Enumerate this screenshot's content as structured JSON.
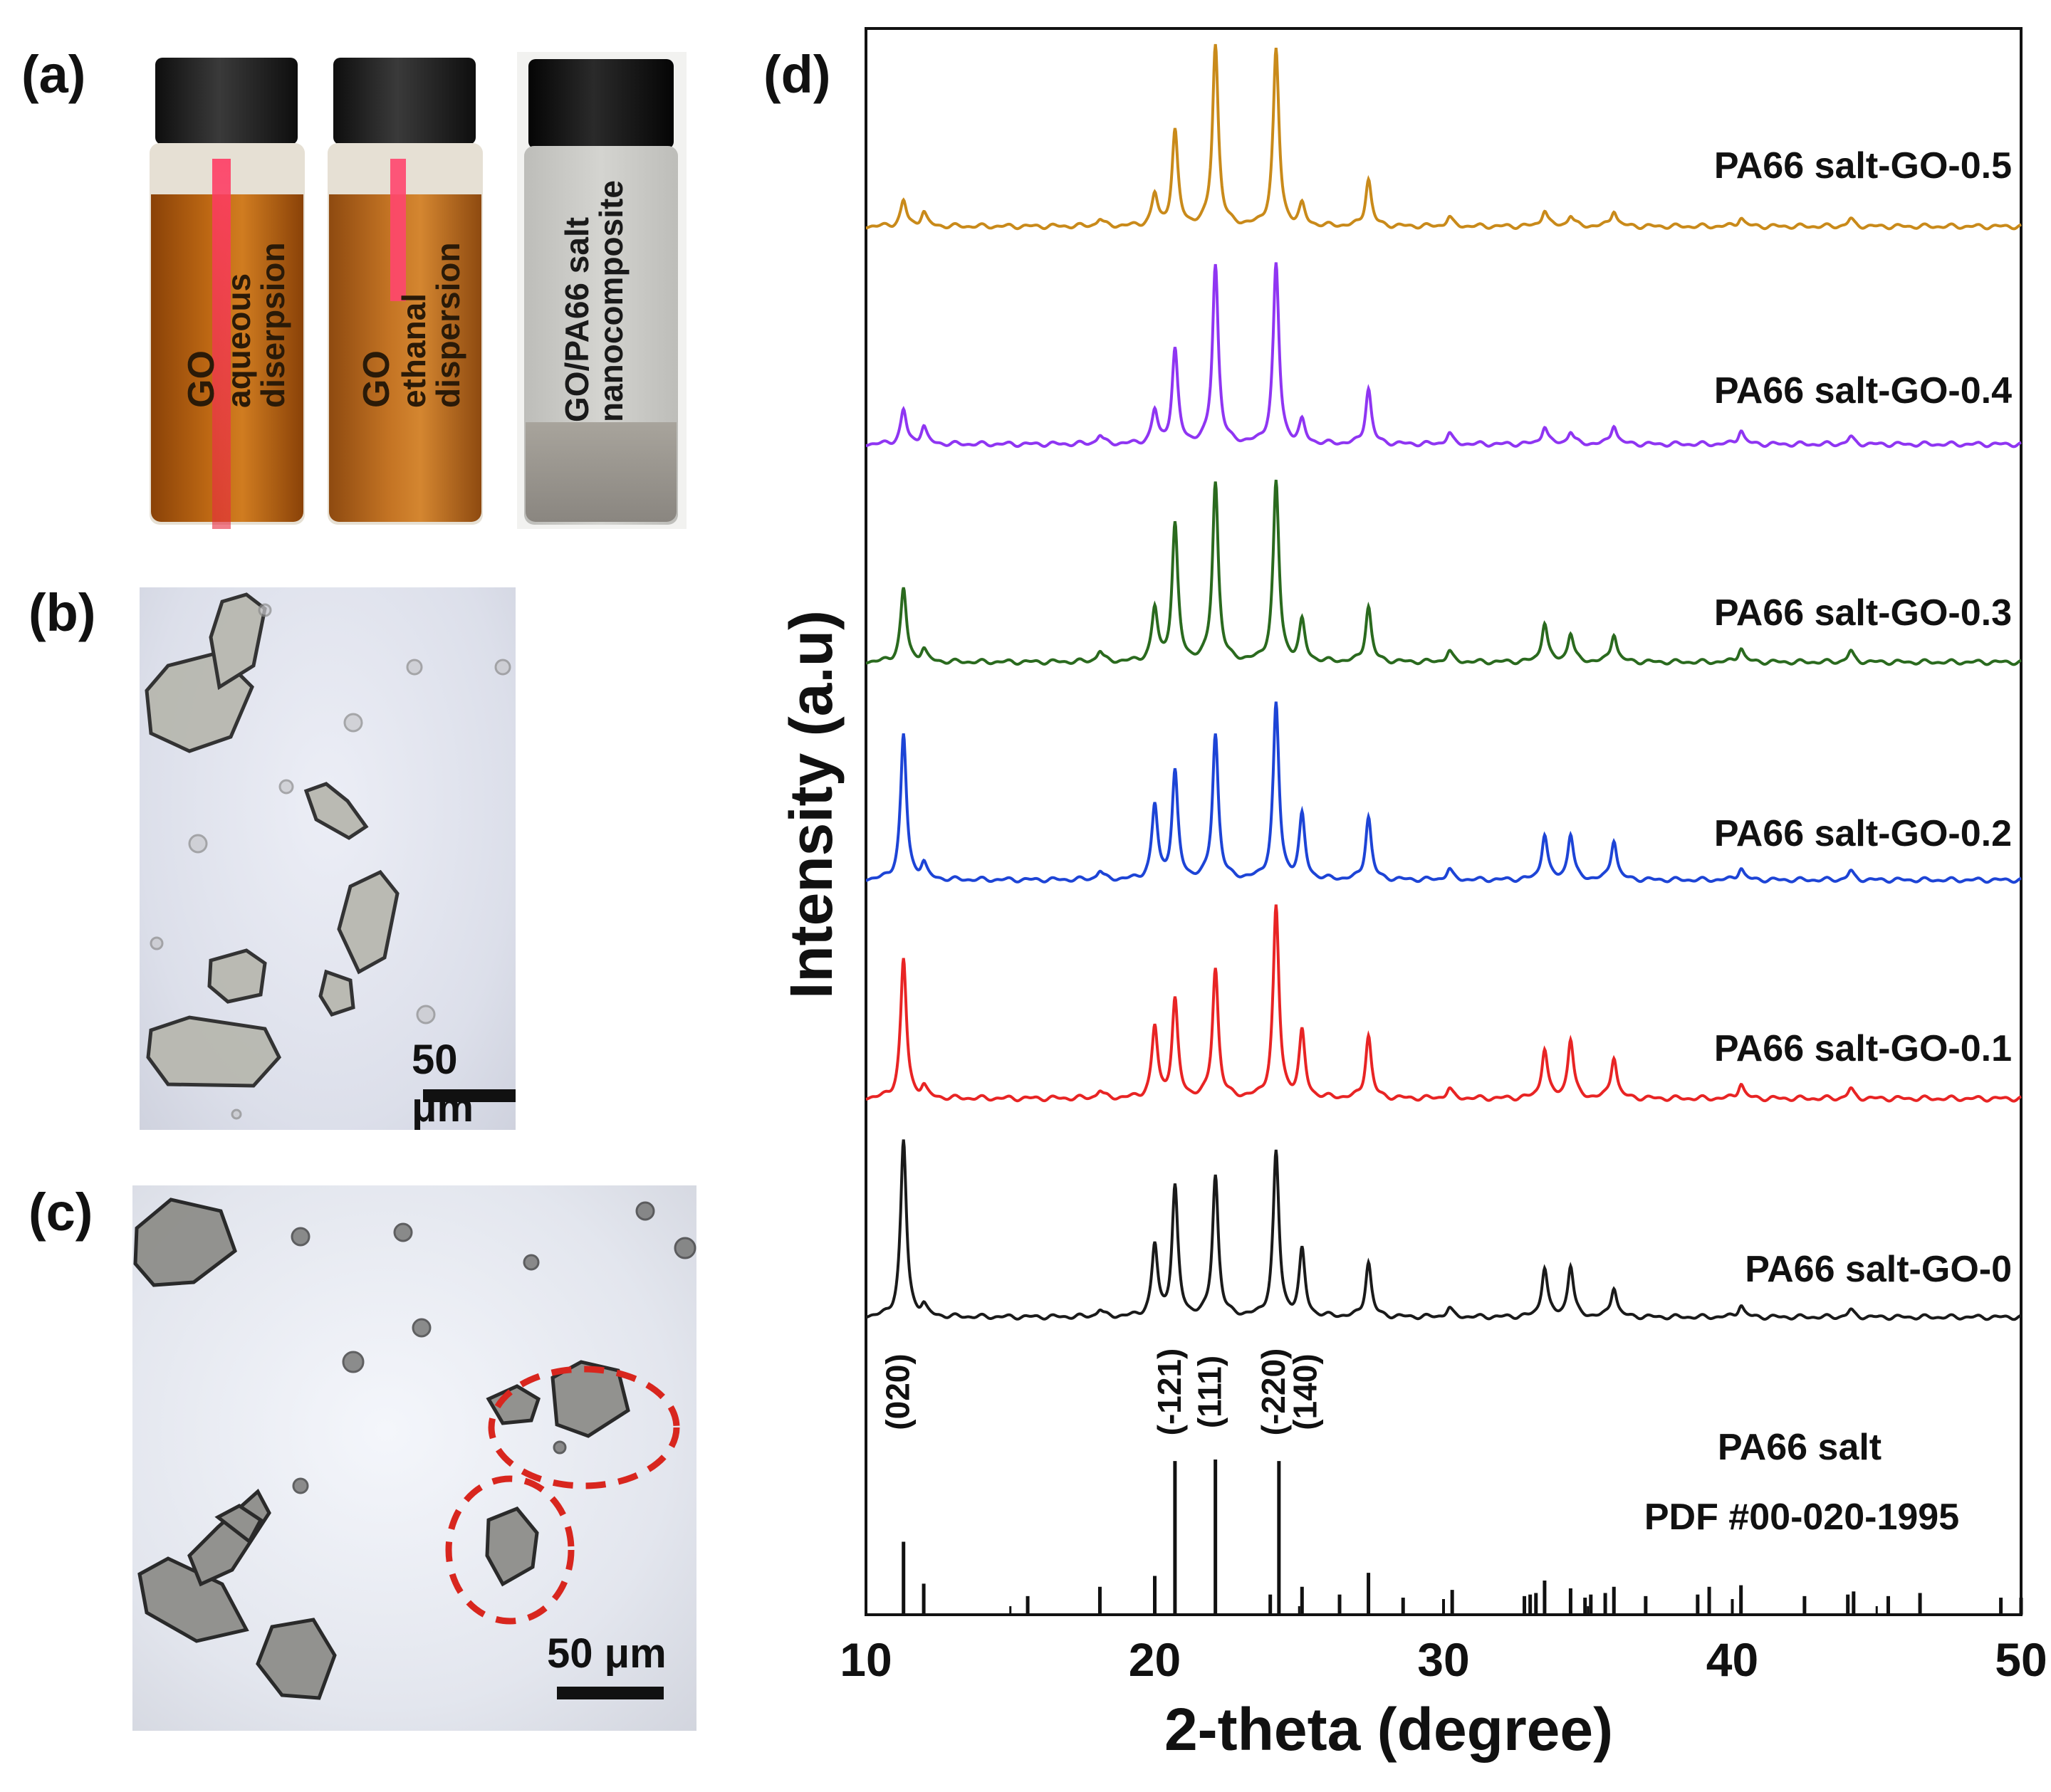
{
  "panel_labels": {
    "a": "(a)",
    "b": "(b)",
    "c": "(c)",
    "d": "(d)"
  },
  "panel_a": {
    "vials": [
      {
        "label_line1": "GO",
        "label_line2": "aqueous",
        "label_line3": "diserpsion",
        "liquid_color": "#b8600f"
      },
      {
        "label_line1": "GO",
        "label_line2": "ethanal",
        "label_line3": "dispersion",
        "liquid_color": "#b86a1c"
      },
      {
        "label_line1": "GO/PA66 salt",
        "label_line2": "nanocomposite",
        "label_line3": "",
        "liquid_color": "#c4c4c0"
      }
    ]
  },
  "panel_b": {
    "scale_label": "50 μm"
  },
  "panel_c": {
    "scale_label": "50 μm"
  },
  "chart_data": {
    "type": "line",
    "xlabel": "2-theta (degree)",
    "ylabel": "Intensity (a.u)",
    "xlim": [
      10,
      50
    ],
    "xticks": [
      10,
      20,
      30,
      40,
      50
    ],
    "series": [
      {
        "name": "PA66 salt-GO-0.5",
        "color": "#c98a1a",
        "peaks": [
          [
            11.3,
            0.14
          ],
          [
            12.0,
            0.08
          ],
          [
            18.1,
            0.04
          ],
          [
            20.0,
            0.17
          ],
          [
            20.7,
            0.52
          ],
          [
            22.1,
            1.0
          ],
          [
            24.2,
            0.97
          ],
          [
            25.1,
            0.11
          ],
          [
            27.4,
            0.26
          ],
          [
            30.2,
            0.05
          ],
          [
            33.5,
            0.09
          ],
          [
            34.4,
            0.06
          ],
          [
            35.9,
            0.09
          ],
          [
            40.3,
            0.05
          ],
          [
            44.1,
            0.04
          ]
        ]
      },
      {
        "name": "PA66 salt-GO-0.4",
        "color": "#8f35f2",
        "peaks": [
          [
            11.3,
            0.19
          ],
          [
            12.0,
            0.1
          ],
          [
            18.1,
            0.05
          ],
          [
            20.0,
            0.18
          ],
          [
            20.7,
            0.52
          ],
          [
            22.1,
            1.0
          ],
          [
            24.2,
            1.0
          ],
          [
            25.1,
            0.12
          ],
          [
            27.4,
            0.31
          ],
          [
            30.2,
            0.06
          ],
          [
            33.5,
            0.1
          ],
          [
            34.4,
            0.07
          ],
          [
            35.9,
            0.11
          ],
          [
            40.3,
            0.08
          ],
          [
            44.1,
            0.04
          ]
        ]
      },
      {
        "name": "PA66 salt-GO-0.3",
        "color": "#2a6a1e",
        "peaks": [
          [
            11.3,
            0.41
          ],
          [
            12.0,
            0.07
          ],
          [
            18.1,
            0.06
          ],
          [
            20.0,
            0.29
          ],
          [
            20.7,
            0.76
          ],
          [
            22.1,
            1.0
          ],
          [
            24.2,
            1.0
          ],
          [
            25.1,
            0.22
          ],
          [
            27.4,
            0.31
          ],
          [
            30.2,
            0.06
          ],
          [
            33.5,
            0.22
          ],
          [
            34.4,
            0.16
          ],
          [
            35.9,
            0.16
          ],
          [
            40.3,
            0.08
          ],
          [
            44.1,
            0.06
          ]
        ]
      },
      {
        "name": "PA66 salt-GO-0.2",
        "color": "#1d44d6",
        "peaks": [
          [
            11.3,
            0.83
          ],
          [
            12.0,
            0.09
          ],
          [
            18.1,
            0.05
          ],
          [
            20.0,
            0.42
          ],
          [
            20.7,
            0.61
          ],
          [
            22.1,
            0.83
          ],
          [
            24.2,
            1.0
          ],
          [
            25.1,
            0.36
          ],
          [
            27.4,
            0.36
          ],
          [
            30.2,
            0.06
          ],
          [
            33.5,
            0.26
          ],
          [
            34.4,
            0.26
          ],
          [
            35.9,
            0.23
          ],
          [
            40.3,
            0.07
          ],
          [
            44.1,
            0.05
          ]
        ]
      },
      {
        "name": "PA66 salt-GO-0.1",
        "color": "#e82424",
        "peaks": [
          [
            11.3,
            0.73
          ],
          [
            12.0,
            0.06
          ],
          [
            18.1,
            0.04
          ],
          [
            20.0,
            0.37
          ],
          [
            20.7,
            0.51
          ],
          [
            22.1,
            0.68
          ],
          [
            24.2,
            1.0
          ],
          [
            25.1,
            0.34
          ],
          [
            27.4,
            0.33
          ],
          [
            30.2,
            0.05
          ],
          [
            33.5,
            0.26
          ],
          [
            34.4,
            0.31
          ],
          [
            35.9,
            0.22
          ],
          [
            40.3,
            0.08
          ],
          [
            44.1,
            0.05
          ]
        ]
      },
      {
        "name": "PA66 salt-GO-0",
        "color": "#1a1a1a",
        "peaks": [
          [
            11.3,
            1.0
          ],
          [
            12.0,
            0.06
          ],
          [
            18.1,
            0.04
          ],
          [
            20.0,
            0.4
          ],
          [
            20.7,
            0.73
          ],
          [
            22.1,
            0.8
          ],
          [
            24.2,
            0.93
          ],
          [
            25.1,
            0.37
          ],
          [
            27.4,
            0.31
          ],
          [
            30.2,
            0.05
          ],
          [
            33.5,
            0.28
          ],
          [
            34.4,
            0.29
          ],
          [
            35.9,
            0.17
          ],
          [
            40.3,
            0.07
          ],
          [
            44.1,
            0.04
          ]
        ]
      }
    ],
    "reference": {
      "title_line1": "PA66 salt",
      "title_line2": "PDF #00-020-1995",
      "lines": [
        [
          11.3,
          0.47
        ],
        [
          12.0,
          0.2
        ],
        [
          15.6,
          0.12
        ],
        [
          18.1,
          0.18
        ],
        [
          20.0,
          0.25
        ],
        [
          20.7,
          0.99
        ],
        [
          22.1,
          1.0
        ],
        [
          24.0,
          0.13
        ],
        [
          24.3,
          0.99
        ],
        [
          25.1,
          0.18
        ],
        [
          26.4,
          0.13
        ],
        [
          27.4,
          0.27
        ],
        [
          28.6,
          0.11
        ],
        [
          30.3,
          0.16
        ],
        [
          32.8,
          0.12
        ],
        [
          33.0,
          0.13
        ],
        [
          33.2,
          0.14
        ],
        [
          33.5,
          0.22
        ],
        [
          34.4,
          0.17
        ],
        [
          34.9,
          0.11
        ],
        [
          35.1,
          0.13
        ],
        [
          35.6,
          0.14
        ],
        [
          35.9,
          0.18
        ],
        [
          37.0,
          0.12
        ],
        [
          38.8,
          0.13
        ],
        [
          39.2,
          0.18
        ],
        [
          40.3,
          0.19
        ],
        [
          42.5,
          0.12
        ],
        [
          44.0,
          0.13
        ],
        [
          44.2,
          0.15
        ],
        [
          45.4,
          0.12
        ],
        [
          46.5,
          0.14
        ],
        [
          49.3,
          0.11
        ],
        [
          50.0,
          0.11
        ]
      ]
    },
    "miller_indices": [
      {
        "label": "(020)",
        "x": 11.3
      },
      {
        "label": "(-121)",
        "x": 20.7
      },
      {
        "label": "(111)",
        "x": 22.1
      },
      {
        "label": "(-220)",
        "x": 24.3
      },
      {
        "label": "(140)",
        "x": 25.4
      }
    ]
  }
}
